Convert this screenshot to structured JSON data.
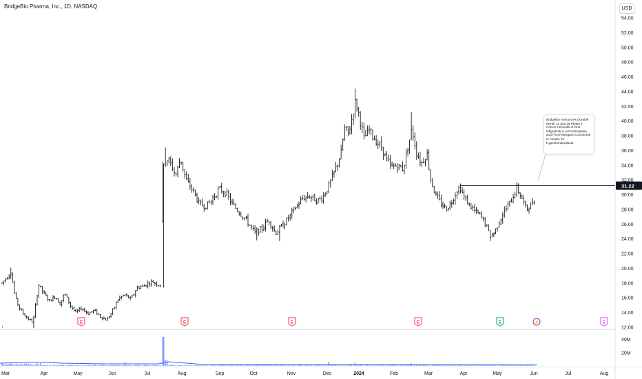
{
  "header": {
    "title": "BridgeBio Pharma, Inc., 1D, NASDAQ",
    "currency": "USD"
  },
  "annotation": {
    "text": "BridgeBio Announces Durable Month 12 and 18 Phase 2 Cohort 5 Results of Oral Infigratinib in Achondroplasia, and First Participant Consented in ACCEL for Hypochondroplasia"
  },
  "last_price_label": "31.22",
  "event_markers": [
    {
      "type": "earnings",
      "letter": "E",
      "status": "past",
      "date": "2023-05-01",
      "color": "#f23645"
    },
    {
      "type": "earnings",
      "letter": "E",
      "status": "past",
      "date": "2023-08-03",
      "color": "#f23645"
    },
    {
      "type": "earnings",
      "letter": "E",
      "status": "past",
      "date": "2023-11-06",
      "color": "#f23645"
    },
    {
      "type": "earnings",
      "letter": "E",
      "status": "past",
      "date": "2024-02-22",
      "color": "#f23645"
    },
    {
      "type": "earnings",
      "letter": "E",
      "status": "past",
      "date": "2024-05-02",
      "color": "#089981"
    },
    {
      "type": "news",
      "letter": "⚡",
      "status": "past",
      "date": "2024-05-28",
      "color": "#9c27b0"
    },
    {
      "type": "earnings",
      "letter": "E",
      "status": "upcoming",
      "date": "2024-08-01",
      "color": "#e040fb"
    }
  ],
  "chart_data": {
    "type": "ohlc",
    "ticker": "BBIO",
    "interval": "1D",
    "price_axis": {
      "ticks": [
        "54.00",
        "52.00",
        "50.00",
        "48.00",
        "46.00",
        "44.00",
        "42.00",
        "40.00",
        "38.00",
        "36.00",
        "34.00",
        "32.00",
        "30.00",
        "28.00",
        "26.00",
        "24.00",
        "22.00",
        "20.00",
        "18.00",
        "16.00",
        "14.00",
        "12.00"
      ],
      "ylim": [
        11.5,
        55.2
      ]
    },
    "volume_axis": {
      "ticks": [
        "40M",
        "20M"
      ]
    },
    "x_axis": {
      "ticks": [
        "Mar",
        "Apr",
        "May",
        "Jun",
        "Jul",
        "Aug",
        "Sep",
        "Oct",
        "Nov",
        "Dec",
        "2024",
        "Feb",
        "Mar",
        "Apr",
        "May",
        "Jun",
        "Jul",
        "Aug"
      ]
    },
    "horizontal_line": 31.22,
    "anchors": [
      {
        "date": "2023-03-01",
        "close": 18.0
      },
      {
        "date": "2023-03-06",
        "close": 19.5
      },
      {
        "date": "2023-03-10",
        "close": 16.0
      },
      {
        "date": "2023-03-17",
        "close": 14.3
      },
      {
        "date": "2023-03-24",
        "close": 13.2
      },
      {
        "date": "2023-03-29",
        "close": 12.7
      },
      {
        "date": "2023-04-03",
        "close": 17.8
      },
      {
        "date": "2023-04-07",
        "close": 16.5
      },
      {
        "date": "2023-04-14",
        "close": 15.6
      },
      {
        "date": "2023-04-21",
        "close": 16.2
      },
      {
        "date": "2023-04-26",
        "close": 15.2
      },
      {
        "date": "2023-05-02",
        "close": 16.6
      },
      {
        "date": "2023-05-09",
        "close": 15.0
      },
      {
        "date": "2023-05-16",
        "close": 14.0
      },
      {
        "date": "2023-05-23",
        "close": 14.6
      },
      {
        "date": "2023-05-31",
        "close": 13.9
      },
      {
        "date": "2023-06-07",
        "close": 14.3
      },
      {
        "date": "2023-06-14",
        "close": 13.5
      },
      {
        "date": "2023-06-20",
        "close": 13.2
      },
      {
        "date": "2023-06-23",
        "close": 13.0
      },
      {
        "date": "2023-06-28",
        "close": 14.0
      },
      {
        "date": "2023-07-05",
        "close": 15.9
      },
      {
        "date": "2023-07-12",
        "close": 16.4
      },
      {
        "date": "2023-07-18",
        "close": 15.8
      },
      {
        "date": "2023-07-25",
        "close": 17.4
      },
      {
        "date": "2023-08-01",
        "close": 17.6
      },
      {
        "date": "2023-08-04",
        "close": 18.2
      },
      {
        "date": "2023-08-07",
        "close": 17.7
      },
      {
        "date": "2023-08-08",
        "close": 33.5
      },
      {
        "date": "2023-08-10",
        "close": 35.0
      },
      {
        "date": "2023-08-15",
        "close": 34.2
      },
      {
        "date": "2023-08-18",
        "close": 32.6
      },
      {
        "date": "2023-08-24",
        "close": 35.0
      },
      {
        "date": "2023-08-31",
        "close": 32.0
      },
      {
        "date": "2023-09-07",
        "close": 30.6
      },
      {
        "date": "2023-09-14",
        "close": 28.6
      },
      {
        "date": "2023-09-21",
        "close": 28.5
      },
      {
        "date": "2023-09-28",
        "close": 29.6
      },
      {
        "date": "2023-10-03",
        "close": 30.8
      },
      {
        "date": "2023-10-10",
        "close": 30.2
      },
      {
        "date": "2023-10-17",
        "close": 28.6
      },
      {
        "date": "2023-10-24",
        "close": 27.6
      },
      {
        "date": "2023-10-31",
        "close": 26.5
      },
      {
        "date": "2023-11-07",
        "close": 24.8
      },
      {
        "date": "2023-11-14",
        "close": 25.4
      },
      {
        "date": "2023-11-21",
        "close": 26.6
      },
      {
        "date": "2023-11-28",
        "close": 24.8
      },
      {
        "date": "2023-12-05",
        "close": 25.8
      },
      {
        "date": "2023-12-12",
        "close": 27.0
      },
      {
        "date": "2023-12-19",
        "close": 28.4
      },
      {
        "date": "2023-12-27",
        "close": 29.6
      },
      {
        "date": "2024-01-03",
        "close": 29.8
      },
      {
        "date": "2024-01-10",
        "close": 29.2
      },
      {
        "date": "2024-01-16",
        "close": 29.6
      },
      {
        "date": "2024-01-23",
        "close": 31.3
      },
      {
        "date": "2024-01-30",
        "close": 33.5
      },
      {
        "date": "2024-02-06",
        "close": 35.6
      },
      {
        "date": "2024-02-13",
        "close": 39.0
      },
      {
        "date": "2024-02-20",
        "close": 38.2
      },
      {
        "date": "2024-02-26",
        "close": 40.9
      },
      {
        "date": "2024-03-01",
        "close": 42.7
      },
      {
        "date": "2024-03-05",
        "close": 40.6
      },
      {
        "date": "2024-03-11",
        "close": 37.6
      },
      {
        "date": "2024-03-18",
        "close": 38.8
      },
      {
        "date": "2024-03-25",
        "close": 37.4
      },
      {
        "date": "2024-04-01",
        "close": 36.4
      },
      {
        "date": "2024-04-08",
        "close": 34.6
      },
      {
        "date": "2024-04-12",
        "close": 33.7
      },
      {
        "date": "2024-04-19",
        "close": 34.0
      },
      {
        "date": "2024-04-25",
        "close": 33.5
      },
      {
        "date": "2024-04-30",
        "close": 38.9
      },
      {
        "date": "2024-05-06",
        "close": 35.6
      },
      {
        "date": "2024-05-13",
        "close": 34.3
      },
      {
        "date": "2024-05-20",
        "close": 35.6
      },
      {
        "date": "2024-05-24",
        "close": 32.2
      },
      {
        "date": "2024-05-31",
        "close": 30.0
      },
      {
        "date": "2024-06-07",
        "close": 28.8
      },
      {
        "date": "2024-06-14",
        "close": 28.1
      },
      {
        "date": "2024-06-21",
        "close": 29.1
      },
      {
        "date": "2024-06-28",
        "close": 30.6
      },
      {
        "date": "2024-07-03",
        "close": 31.0
      },
      {
        "date": "2024-07-10",
        "close": 29.4
      },
      {
        "date": "2024-07-17",
        "close": 28.6
      },
      {
        "date": "2024-07-24",
        "close": 27.7
      },
      {
        "date": "2024-07-31",
        "close": 27.2
      },
      {
        "date": "2024-08-07",
        "close": 26.2
      },
      {
        "date": "2024-08-12",
        "close": 24.4
      },
      {
        "date": "2024-08-16",
        "close": 24.9
      },
      {
        "date": "2024-08-23",
        "close": 26.7
      },
      {
        "date": "2024-08-30",
        "close": 28.0
      },
      {
        "date": "2024-09-06",
        "close": 29.2
      },
      {
        "date": "2024-09-12",
        "close": 30.9
      },
      {
        "date": "2024-09-19",
        "close": 29.7
      },
      {
        "date": "2024-09-26",
        "close": 28.0
      },
      {
        "date": "2024-10-03",
        "close": 28.8
      },
      {
        "date": "2024-10-07",
        "close": 29.6
      }
    ],
    "volume_spikes": [
      {
        "date": "2023-03-01",
        "value": 5
      },
      {
        "date": "2023-07-13",
        "value": 6
      },
      {
        "date": "2023-08-08",
        "value": 45
      },
      {
        "date": "2023-08-09",
        "value": 12
      },
      {
        "date": "2024-01-24",
        "value": 6
      },
      {
        "date": "2024-02-29",
        "value": 5
      },
      {
        "date": "2024-05-01",
        "value": 4
      }
    ]
  }
}
